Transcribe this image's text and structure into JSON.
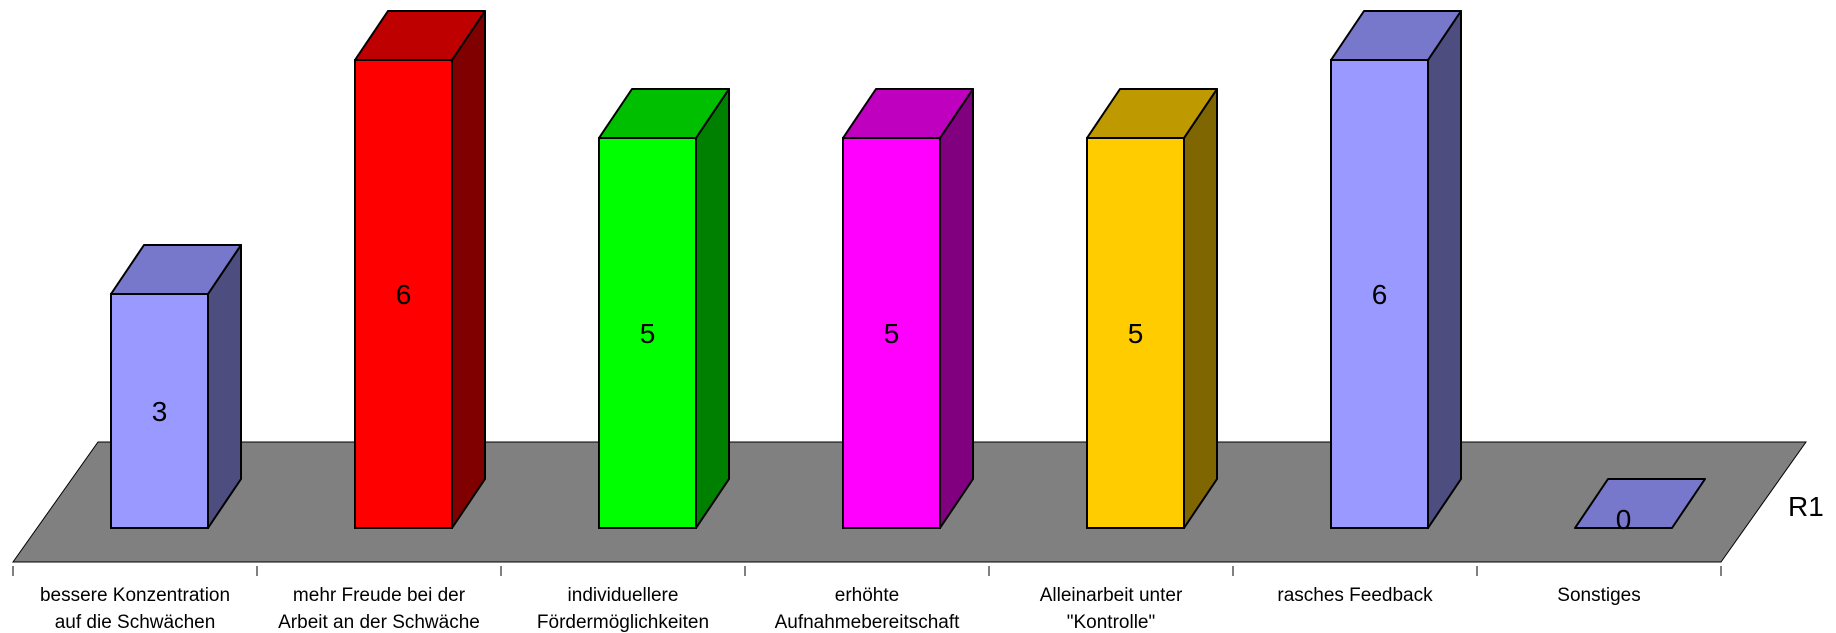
{
  "chart_data": {
    "type": "bar",
    "style": "3d-column",
    "categories": [
      [
        "bessere Konzentration",
        "auf die Schwächen"
      ],
      [
        "mehr Freude bei der",
        "Arbeit an der Schwäche"
      ],
      [
        "individuellere",
        "Fördermöglichkeiten"
      ],
      [
        "erhöhte",
        "Aufnahmebereitschaft"
      ],
      [
        "Alleinarbeit unter",
        "\"Kontrolle\""
      ],
      [
        "rasches Feedback"
      ],
      [
        "Sonstiges"
      ]
    ],
    "series": [
      {
        "name": "R1",
        "values": [
          3,
          6,
          5,
          5,
          5,
          6,
          0
        ],
        "value_labels": [
          "3",
          "6",
          "5",
          "5",
          "5",
          "6",
          "0"
        ]
      }
    ],
    "ylim": [
      0,
      6
    ],
    "grid": false,
    "data_labels": true,
    "colors": [
      {
        "front": "#9999FF",
        "top": "#7777CC",
        "side": "#4D4D80"
      },
      {
        "front": "#FF0000",
        "top": "#BF0000",
        "side": "#800000"
      },
      {
        "front": "#00FF00",
        "top": "#00BF00",
        "side": "#008000"
      },
      {
        "front": "#FF00FF",
        "top": "#BF00BF",
        "side": "#800080"
      },
      {
        "front": "#FFCC00",
        "top": "#BF9900",
        "side": "#806600"
      },
      {
        "front": "#9999FF",
        "top": "#7777CC",
        "side": "#4D4D80"
      },
      {
        "front": "#9999FF",
        "top": "#7777CC",
        "side": "#4D4D80"
      }
    ],
    "floor_color": "#808080"
  }
}
